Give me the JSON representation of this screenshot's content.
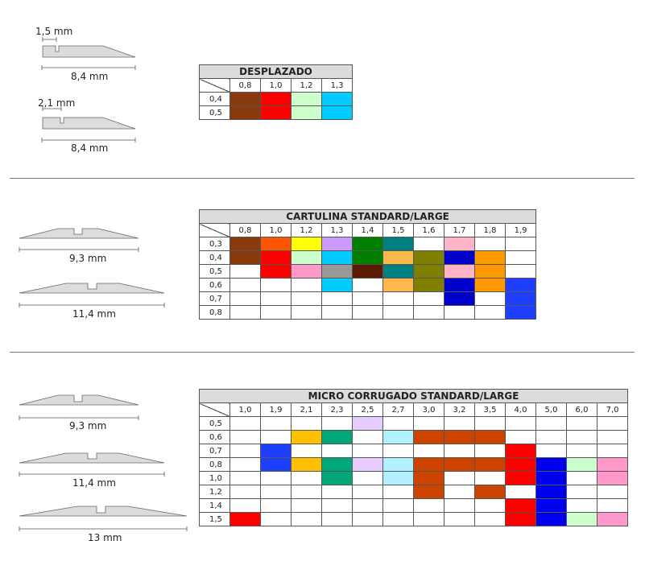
{
  "section1": {
    "profiles": [
      {
        "width_label": "8,4 mm",
        "detail_label": "1,5 mm"
      },
      {
        "width_label": "8,4 mm",
        "detail_label": "2,1 mm"
      }
    ],
    "table": {
      "title": "DESPLAZADO",
      "columns": [
        "0,8",
        "1,0",
        "1,2",
        "1,3"
      ],
      "rows": [
        {
          "label": "0,4",
          "cells": [
            "#8b3a0e",
            "#ff0000",
            "#ccffcc",
            "#00ccff"
          ]
        },
        {
          "label": "0,5",
          "cells": [
            "#8b3a0e",
            "#ff0000",
            "#ccffcc",
            "#00ccff"
          ]
        }
      ]
    }
  },
  "section2": {
    "profiles": [
      {
        "width_label": "9,3 mm"
      },
      {
        "width_label": "11,4 mm"
      }
    ],
    "table": {
      "title": "CARTULINA STANDARD/LARGE",
      "columns": [
        "0,8",
        "1,0",
        "1,2",
        "1,3",
        "1,4",
        "1,5",
        "1,6",
        "1,7",
        "1,8",
        "1,9"
      ],
      "rows": [
        {
          "label": "0,3",
          "cells": [
            "#8b3a0e",
            "#ff5500",
            "#ffff00",
            "#cc99ff",
            "#008000",
            "#008080",
            "",
            "#ffb3c6",
            "",
            ""
          ]
        },
        {
          "label": "0,4",
          "cells": [
            "#8b3a0e",
            "#ff0000",
            "#ccffcc",
            "#00ccff",
            "#008000",
            "#ffb84d",
            "#808000",
            "#0000cc",
            "#ff9900",
            ""
          ]
        },
        {
          "label": "0,5",
          "cells": [
            "",
            "#ff0000",
            "#ff99cc",
            "#999999",
            "#5c1a00",
            "#008080",
            "#808000",
            "#ffb3c6",
            "#ff9900",
            ""
          ]
        },
        {
          "label": "0,6",
          "cells": [
            "",
            "",
            "",
            "#00ccff",
            "",
            "#ffb84d",
            "#808000",
            "#0000cc",
            "#ff9900",
            "#1f3fff"
          ]
        },
        {
          "label": "0,7",
          "cells": [
            "",
            "",
            "",
            "",
            "",
            "",
            "",
            "#0000cc",
            "",
            "#1f3fff"
          ]
        },
        {
          "label": "0,8",
          "cells": [
            "",
            "",
            "",
            "",
            "",
            "",
            "",
            "",
            "",
            "#1f3fff"
          ]
        }
      ]
    }
  },
  "section3": {
    "profiles": [
      {
        "width_label": "9,3 mm"
      },
      {
        "width_label": "11,4 mm"
      },
      {
        "width_label": "13 mm"
      }
    ],
    "table": {
      "title": "MICRO CORRUGADO STANDARD/LARGE",
      "columns": [
        "1,0",
        "1,9",
        "2,1",
        "2,3",
        "2,5",
        "2,7",
        "3,0",
        "3,2",
        "3,5",
        "4,0",
        "5,0",
        "6,0",
        "7,0"
      ],
      "rows": [
        {
          "label": "0,5",
          "cells": [
            "",
            "",
            "",
            "",
            "#e6ccff",
            "",
            "",
            "",
            "",
            "",
            "",
            "",
            ""
          ]
        },
        {
          "label": "0,6",
          "cells": [
            "",
            "",
            "#ffc000",
            "#00a878",
            "",
            "#b3f0ff",
            "#cc4400",
            "#cc4400",
            "#cc4400",
            "",
            "",
            "",
            ""
          ]
        },
        {
          "label": "0,7",
          "cells": [
            "",
            "#1f3fff",
            "",
            "",
            "",
            "",
            "",
            "",
            "",
            "#ff0000",
            "",
            "",
            ""
          ]
        },
        {
          "label": "0,8",
          "cells": [
            "",
            "#1f3fff",
            "#ffc000",
            "#00a878",
            "#e6ccff",
            "#b3f0ff",
            "#cc4400",
            "#cc4400",
            "#cc4400",
            "#ff0000",
            "#0000ee",
            "#ccffcc",
            "#ff99cc"
          ]
        },
        {
          "label": "1,0",
          "cells": [
            "",
            "",
            "",
            "#00a878",
            "",
            "#b3f0ff",
            "#cc4400",
            "",
            "",
            "#ff0000",
            "#0000ee",
            "",
            "#ff99cc"
          ]
        },
        {
          "label": "1,2",
          "cells": [
            "",
            "",
            "",
            "",
            "",
            "",
            "#cc4400",
            "",
            "#cc4400",
            "",
            "#0000ee",
            "",
            ""
          ]
        },
        {
          "label": "1,4",
          "cells": [
            "",
            "",
            "",
            "",
            "",
            "",
            "",
            "",
            "",
            "#ff0000",
            "#0000ee",
            "",
            ""
          ]
        },
        {
          "label": "1,5",
          "cells": [
            "#ff0000",
            "",
            "",
            "",
            "",
            "",
            "",
            "",
            "",
            "#ff0000",
            "#0000ee",
            "#ccffcc",
            "#ff99cc"
          ]
        }
      ]
    }
  }
}
